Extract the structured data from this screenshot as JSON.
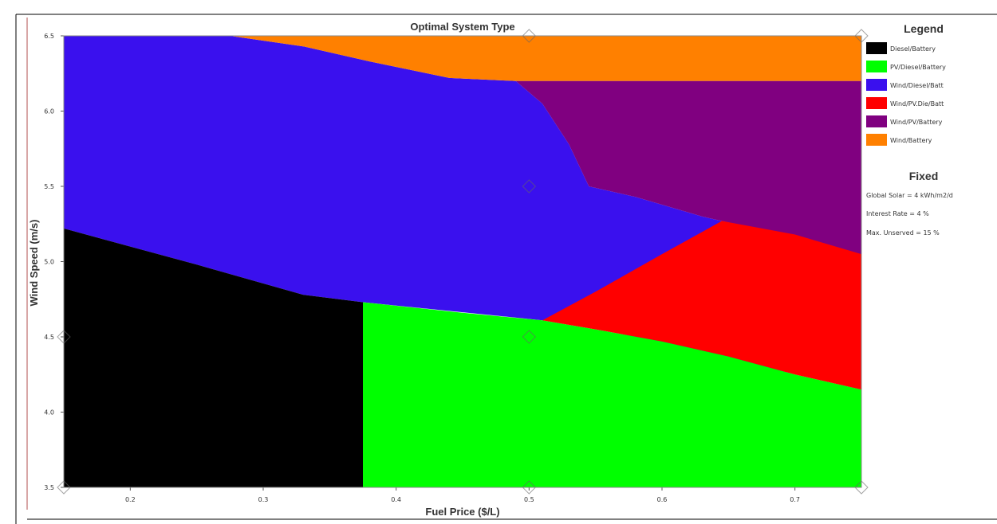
{
  "chart_data": {
    "type": "heatmap",
    "title": "Optimal System Type",
    "xlabel": "Fuel Price ($/L)",
    "ylabel": "Wind Speed (m/s)",
    "xlim": [
      0.15,
      0.75
    ],
    "ylim": [
      3.5,
      6.5
    ],
    "x_ticks": [
      0.2,
      0.3,
      0.4,
      0.5,
      0.6,
      0.7
    ],
    "x_tick_labels": [
      "0.2",
      "0.3",
      "0.4",
      "0.5",
      "0.6",
      "0.7"
    ],
    "y_ticks": [
      3.5,
      4.0,
      4.5,
      5.0,
      5.5,
      6.0,
      6.5
    ],
    "y_tick_labels": [
      "3.5",
      "4.0",
      "4.5",
      "5.0",
      "5.5",
      "6.0",
      "6.5"
    ],
    "markers": [
      [
        0.15,
        3.5
      ],
      [
        0.5,
        3.5
      ],
      [
        0.75,
        3.5
      ],
      [
        0.15,
        4.5
      ],
      [
        0.5,
        4.5
      ],
      [
        0.5,
        5.5
      ],
      [
        0.5,
        6.5
      ],
      [
        0.75,
        6.5
      ]
    ],
    "regions": [
      {
        "name": "Wind/Diesel/Batt",
        "color": "#3a10ee",
        "boundary": [
          [
            0.15,
            6.5
          ],
          [
            0.275,
            6.5
          ],
          [
            0.33,
            6.43
          ],
          [
            0.38,
            6.33
          ],
          [
            0.44,
            6.22
          ],
          [
            0.49,
            6.2
          ],
          [
            0.51,
            6.05
          ],
          [
            0.53,
            5.78
          ],
          [
            0.545,
            5.5
          ],
          [
            0.58,
            5.43
          ],
          [
            0.63,
            5.3
          ],
          [
            0.67,
            5.22
          ],
          [
            0.75,
            5.0
          ],
          [
            0.75,
            4.15
          ],
          [
            0.52,
            4.62
          ],
          [
            0.51,
            4.61
          ],
          [
            0.375,
            4.73
          ],
          [
            0.33,
            4.78
          ],
          [
            0.25,
            4.98
          ],
          [
            0.2,
            5.1
          ],
          [
            0.15,
            5.22
          ]
        ]
      },
      {
        "name": "Wind/Battery",
        "color": "#ff8000",
        "boundary": [
          [
            0.275,
            6.5
          ],
          [
            0.75,
            6.5
          ],
          [
            0.75,
            6.2
          ],
          [
            0.49,
            6.2
          ],
          [
            0.44,
            6.22
          ],
          [
            0.38,
            6.33
          ],
          [
            0.33,
            6.43
          ]
        ]
      },
      {
        "name": "Wind/PV/Battery",
        "color": "#800080",
        "boundary": [
          [
            0.49,
            6.2
          ],
          [
            0.75,
            6.2
          ],
          [
            0.75,
            5.0
          ],
          [
            0.67,
            5.22
          ],
          [
            0.63,
            5.3
          ],
          [
            0.58,
            5.43
          ],
          [
            0.545,
            5.5
          ],
          [
            0.53,
            5.78
          ],
          [
            0.51,
            6.05
          ]
        ]
      },
      {
        "name": "Diesel/Battery",
        "color": "#000000",
        "boundary": [
          [
            0.15,
            5.22
          ],
          [
            0.2,
            5.1
          ],
          [
            0.25,
            4.98
          ],
          [
            0.33,
            4.78
          ],
          [
            0.375,
            4.73
          ],
          [
            0.375,
            3.5
          ],
          [
            0.15,
            3.5
          ]
        ]
      },
      {
        "name": "PV/Diesel/Battery",
        "color": "#00ff00",
        "boundary": [
          [
            0.375,
            4.73
          ],
          [
            0.45,
            4.66
          ],
          [
            0.51,
            4.61
          ],
          [
            0.55,
            4.55
          ],
          [
            0.6,
            4.47
          ],
          [
            0.65,
            4.37
          ],
          [
            0.7,
            4.25
          ],
          [
            0.75,
            4.15
          ],
          [
            0.75,
            3.5
          ],
          [
            0.375,
            3.5
          ]
        ]
      },
      {
        "name": "Wind/PV/Diesel/Batt",
        "color": "#ff0000",
        "boundary": [
          [
            0.51,
            4.61
          ],
          [
            0.55,
            4.8
          ],
          [
            0.6,
            5.05
          ],
          [
            0.645,
            5.27
          ],
          [
            0.7,
            5.18
          ],
          [
            0.75,
            5.05
          ],
          [
            0.75,
            4.15
          ],
          [
            0.7,
            4.25
          ],
          [
            0.65,
            4.37
          ],
          [
            0.6,
            4.47
          ],
          [
            0.55,
            4.55
          ]
        ]
      }
    ]
  },
  "legend": {
    "title": "Legend",
    "items": [
      {
        "label": "Diesel/Battery",
        "color": "#000000"
      },
      {
        "label": "PV/Diesel/Battery",
        "color": "#00ff00"
      },
      {
        "label": "Wind/Diesel/Batt",
        "color": "#3a10ee"
      },
      {
        "label": "Wind/PV.Die/Batt",
        "color": "#ff0000"
      },
      {
        "label": "Wind/PV/Battery",
        "color": "#800080"
      },
      {
        "label": "Wind/Battery",
        "color": "#ff8000"
      }
    ]
  },
  "fixed": {
    "title": "Fixed",
    "lines": [
      "Global Solar = 4 kWh/m2/d",
      "Interest Rate = 4 %",
      "Max. Unserved = 15 %"
    ]
  }
}
